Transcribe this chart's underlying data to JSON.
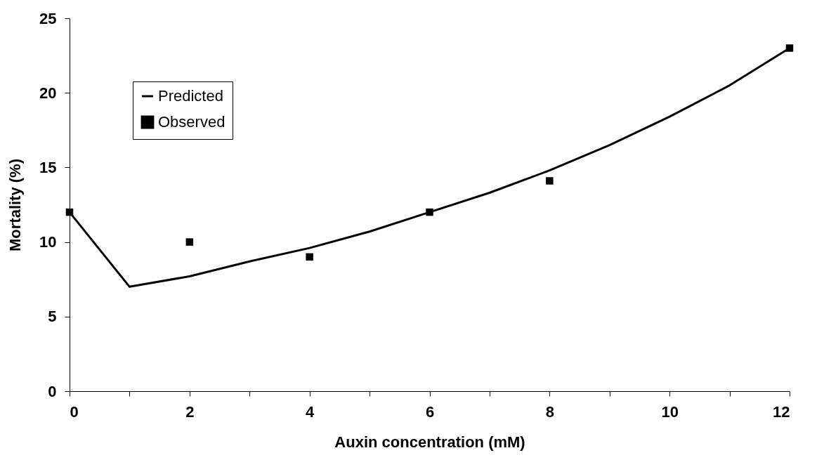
{
  "chart_data": {
    "type": "line",
    "xlabel": "Auxin concentration (mM)",
    "ylabel": "Mortality (%)",
    "xlim": [
      0,
      12
    ],
    "ylim": [
      0,
      25
    ],
    "xticks": [
      0,
      {
        "value": 1,
        "label": null
      },
      2,
      {
        "value": 3,
        "label": null
      },
      4,
      {
        "value": 5,
        "label": null
      },
      6,
      {
        "value": 7,
        "label": null
      },
      8,
      {
        "value": 9,
        "label": null
      },
      10,
      {
        "value": 11,
        "label": null
      },
      12
    ],
    "yticks": [
      0,
      5,
      10,
      15,
      20,
      25
    ],
    "grid": false,
    "legend": "top left",
    "series": [
      {
        "name": "Predicted",
        "type": "line",
        "color": "#000000",
        "marker": "none",
        "line_style": "solid",
        "x": [
          0,
          1,
          2,
          3,
          4,
          5,
          6,
          7,
          8,
          9,
          10,
          11,
          12
        ],
        "values": [
          12,
          7,
          7.7,
          8.7,
          9.6,
          10.7,
          12,
          13.3,
          14.8,
          16.5,
          18.4,
          20.5,
          23
        ]
      },
      {
        "name": "Observed",
        "type": "scatter",
        "color": "#000000",
        "marker": "square",
        "x": [
          0,
          2,
          4,
          6,
          8,
          12
        ],
        "values": [
          12,
          10,
          9,
          12,
          14.1,
          23
        ]
      }
    ]
  }
}
